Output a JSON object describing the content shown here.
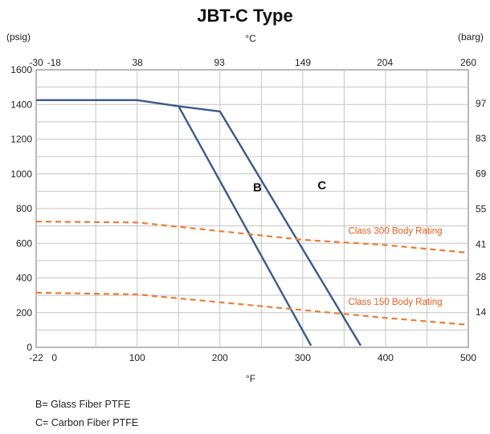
{
  "chart_data": {
    "type": "line",
    "title": "JBT-C Type",
    "x_axis_bottom": {
      "unit": "°F",
      "range": [
        -22,
        500
      ],
      "ticks": [
        -22,
        0,
        100,
        200,
        300,
        400,
        500
      ]
    },
    "x_axis_top": {
      "unit": "°C",
      "ticks": [
        -30,
        -18,
        38,
        93,
        149,
        204,
        260
      ]
    },
    "y_axis_left": {
      "unit": "(psig)",
      "range": [
        0,
        1600
      ],
      "ticks": [
        0,
        200,
        400,
        600,
        800,
        1000,
        1200,
        1400,
        1600
      ]
    },
    "y_axis_right": {
      "unit": "(barg)",
      "ticks": [
        14,
        28,
        41,
        55,
        69,
        83,
        97
      ]
    },
    "grid": true,
    "series": [
      {
        "name": "B",
        "style": "solid",
        "color": "#3a5a8c",
        "points": [
          [
            -22,
            1425
          ],
          [
            100,
            1425
          ],
          [
            150,
            1390
          ],
          [
            310,
            10
          ]
        ]
      },
      {
        "name": "C",
        "style": "solid",
        "color": "#3a5a8c",
        "points": [
          [
            150,
            1390
          ],
          [
            200,
            1360
          ],
          [
            370,
            10
          ]
        ]
      },
      {
        "name": "Class 300 Body Rating",
        "style": "dashed",
        "color": "#f07a30",
        "points": [
          [
            -22,
            725
          ],
          [
            100,
            720
          ],
          [
            200,
            670
          ],
          [
            300,
            620
          ],
          [
            400,
            590
          ],
          [
            500,
            545
          ]
        ]
      },
      {
        "name": "Class 150 Body Rating",
        "style": "dashed",
        "color": "#f07a30",
        "points": [
          [
            -22,
            315
          ],
          [
            100,
            305
          ],
          [
            200,
            260
          ],
          [
            300,
            215
          ],
          [
            400,
            170
          ],
          [
            500,
            130
          ]
        ]
      }
    ],
    "annotations": [
      {
        "text": "B",
        "x": 240,
        "y": 900
      },
      {
        "text": "C",
        "x": 318,
        "y": 910
      },
      {
        "text": "Class 300 Body Rating",
        "x": 355,
        "y": 655
      },
      {
        "text": "Class 150 Body Rating",
        "x": 355,
        "y": 245
      }
    ]
  },
  "legend": {
    "b_line": "B= Glass Fiber PTFE",
    "c_line": "C= Carbon Fiber PTFE"
  }
}
